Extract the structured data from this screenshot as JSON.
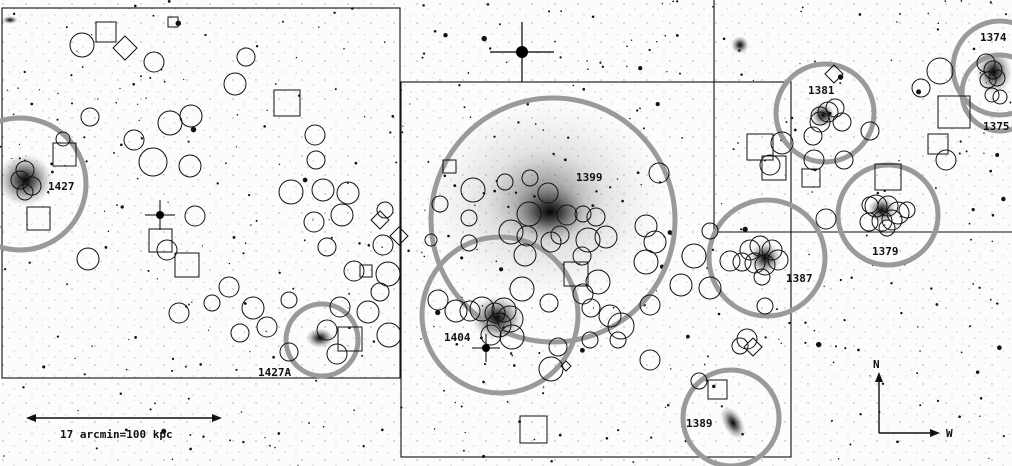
{
  "image": {
    "type": "astronomical negative image",
    "background_color": "#ffffff",
    "ink_color": "#111111",
    "group_circle_color": "#9a9a9a"
  },
  "groups": [
    {
      "label": "1427"
    },
    {
      "label": "1427A"
    },
    {
      "label": "1399"
    },
    {
      "label": "1404"
    },
    {
      "label": "1387"
    },
    {
      "label": "1381"
    },
    {
      "label": "1379"
    },
    {
      "label": "1374"
    },
    {
      "label": "1375"
    },
    {
      "label": "1389"
    }
  ],
  "scale_bar": {
    "label": "17 arcmin=100 kpc"
  },
  "compass": {
    "north": "N",
    "west": "W"
  }
}
